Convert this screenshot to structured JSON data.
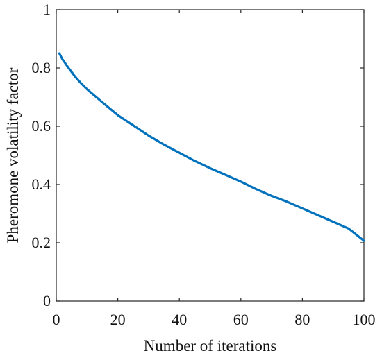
{
  "chart_data": {
    "type": "line",
    "title": "",
    "xlabel": "Number of iterations",
    "ylabel": "Pheromone volatility factor",
    "xlim": [
      0,
      100
    ],
    "ylim": [
      0,
      1
    ],
    "xticks": [
      0,
      20,
      40,
      60,
      80,
      100
    ],
    "yticks": [
      0,
      0.2,
      0.4,
      0.6,
      0.8,
      1
    ],
    "xtick_labels": [
      "0",
      "20",
      "40",
      "60",
      "80",
      "100"
    ],
    "ytick_labels": [
      "0",
      "0.2",
      "0.4",
      "0.6",
      "0.8",
      "1"
    ],
    "grid": false,
    "box": true,
    "series": [
      {
        "color": "#0072BD",
        "x": [
          1,
          2,
          4,
          6,
          8,
          10,
          15,
          20,
          25,
          30,
          35,
          40,
          45,
          50,
          55,
          60,
          65,
          70,
          75,
          80,
          85,
          90,
          95,
          100
        ],
        "y": [
          0.85,
          0.83,
          0.8,
          0.772,
          0.748,
          0.727,
          0.682,
          0.638,
          0.603,
          0.568,
          0.537,
          0.509,
          0.481,
          0.456,
          0.433,
          0.41,
          0.384,
          0.361,
          0.341,
          0.318,
          0.295,
          0.272,
          0.249,
          0.207
        ]
      }
    ]
  }
}
